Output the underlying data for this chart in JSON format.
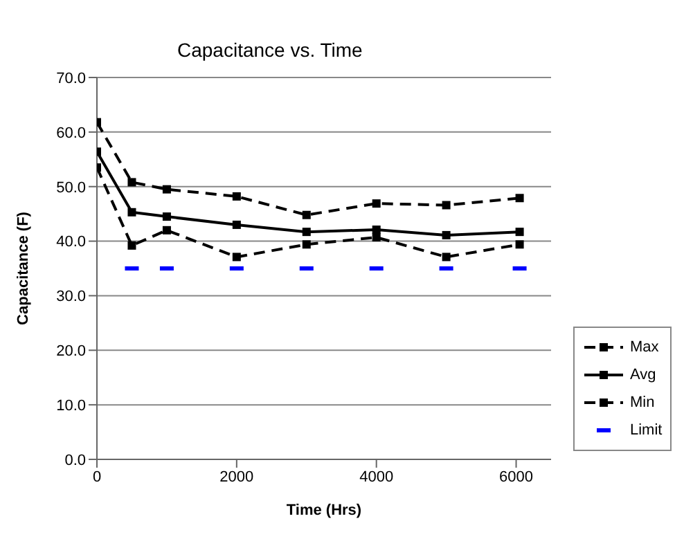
{
  "chart_data": {
    "type": "line",
    "title": "Capacitance vs. Time",
    "xlabel": "Time (Hrs)",
    "ylabel": "Capacitance (F)",
    "x": [
      0,
      500,
      1000,
      2000,
      3000,
      4000,
      5000,
      6050
    ],
    "series": [
      {
        "name": "Max",
        "color": "#000000",
        "line_style": "dashed",
        "marker": "square",
        "values": [
          61.8,
          50.8,
          49.5,
          48.2,
          44.8,
          46.9,
          46.6,
          47.9
        ]
      },
      {
        "name": "Avg",
        "color": "#000000",
        "line_style": "solid",
        "marker": "square",
        "values": [
          56.4,
          45.3,
          44.5,
          43.0,
          41.7,
          42.1,
          41.1,
          41.7
        ]
      },
      {
        "name": "Min",
        "color": "#000000",
        "line_style": "dashed",
        "marker": "square",
        "values": [
          53.5,
          39.2,
          42.0,
          37.1,
          39.4,
          40.7,
          37.1,
          39.4
        ]
      },
      {
        "name": "Limit",
        "type": "scatter",
        "color": "#0000ff",
        "marker": "square",
        "x": [
          500,
          1000,
          2000,
          3000,
          4000,
          5000,
          6050
        ],
        "values": [
          35,
          35,
          35,
          35,
          35,
          35,
          35
        ]
      }
    ],
    "xlim": [
      0,
      6500
    ],
    "xticks": [
      0,
      2000,
      4000,
      6000
    ],
    "ylim": [
      0,
      70
    ],
    "yticks": [
      {
        "value": 0,
        "label": "0.0"
      },
      {
        "value": 10,
        "label": "10.0"
      },
      {
        "value": 20,
        "label": "20.0"
      },
      {
        "value": 30,
        "label": "30.0"
      },
      {
        "value": 40,
        "label": "40.0"
      },
      {
        "value": 50,
        "label": "50.0"
      },
      {
        "value": 60,
        "label": "60.0"
      },
      {
        "value": 70,
        "label": "70.0"
      }
    ],
    "grid": "y",
    "legend": "right"
  }
}
